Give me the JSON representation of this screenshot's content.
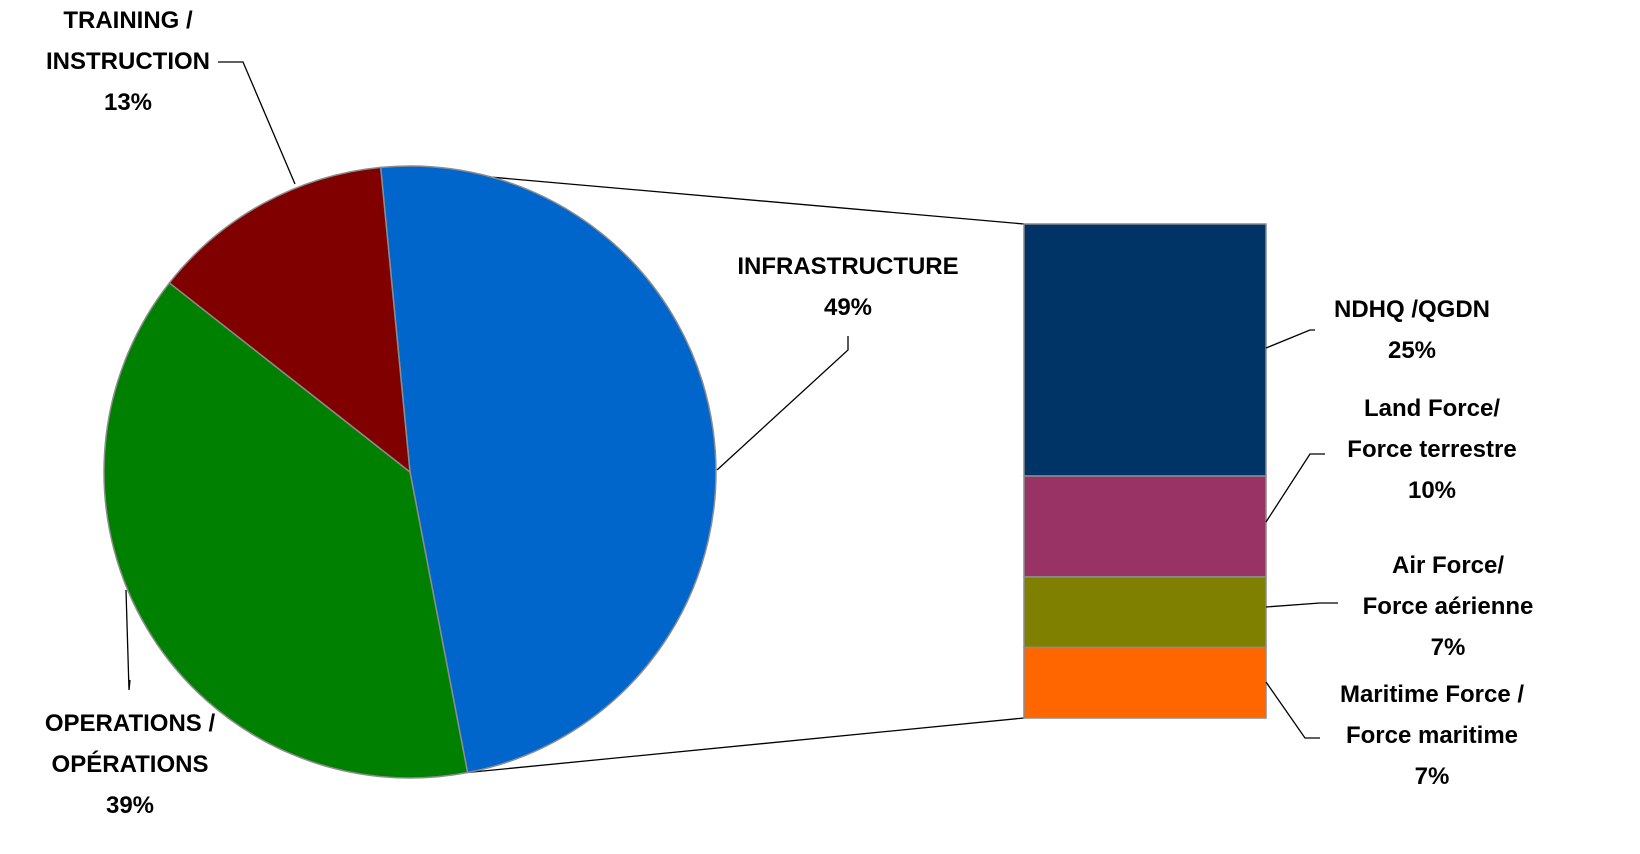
{
  "chart_data": {
    "type": "pie",
    "variant": "bar-of-pie",
    "title": "",
    "slices": [
      {
        "name": "INFRASTRUCTURE",
        "value": 49,
        "label_lines": [
          "INFRASTRUCTURE",
          "49%"
        ],
        "color": "#0066CC"
      },
      {
        "name": "OPERATIONS / OPÉRATIONS",
        "value": 39,
        "label_lines": [
          "OPERATIONS /",
          "OPÉRATIONS",
          "39%"
        ],
        "color": "#008000"
      },
      {
        "name": "TRAINING / INSTRUCTION",
        "value": 13,
        "label_lines": [
          "TRAINING /",
          "INSTRUCTION",
          "13%"
        ],
        "color": "#800000"
      }
    ],
    "breakdown_of": "INFRASTRUCTURE",
    "bar_segments": [
      {
        "name": "NDHQ /QGDN",
        "value": 25,
        "label_lines": [
          "NDHQ /QGDN",
          "25%"
        ],
        "color": "#003366"
      },
      {
        "name": "Land Force/ Force terrestre",
        "value": 10,
        "label_lines": [
          "Land Force/",
          "Force terrestre",
          "10%"
        ],
        "color": "#993366"
      },
      {
        "name": "Air Force/ Force aérienne",
        "value": 7,
        "label_lines": [
          "Air Force/",
          "Force aérienne",
          "7%"
        ],
        "color": "#808000"
      },
      {
        "name": "Maritime Force / Force maritime",
        "value": 7,
        "label_lines": [
          "Maritime Force /",
          "Force maritime",
          "7%"
        ],
        "color": "#FF6600"
      }
    ],
    "legend": "none",
    "grid": false
  }
}
